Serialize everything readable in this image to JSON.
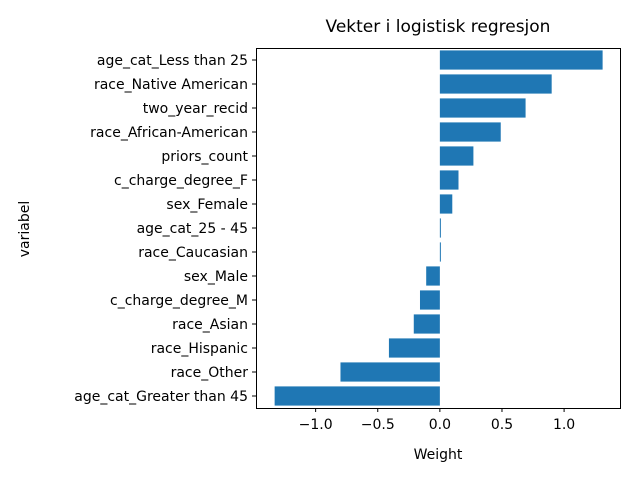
{
  "chart_data": {
    "type": "bar",
    "orientation": "horizontal",
    "title": "Vekter i logistisk regresjon",
    "xlabel": "Weight",
    "ylabel": "variabel",
    "categories": [
      "age_cat_Less than 25",
      "race_Native American",
      "two_year_recid",
      "race_African-American",
      "priors_count",
      "c_charge_degree_F",
      "sex_Female",
      "age_cat_25 - 45",
      "race_Caucasian",
      "sex_Male",
      "c_charge_degree_M",
      "race_Asian",
      "race_Hispanic",
      "race_Other",
      "age_cat_Greater than 45"
    ],
    "values": [
      1.31,
      0.9,
      0.69,
      0.49,
      0.27,
      0.15,
      0.1,
      0.005,
      0.005,
      -0.11,
      -0.16,
      -0.21,
      -0.41,
      -0.8,
      -1.33
    ],
    "xlim": [
      -1.48,
      1.45
    ],
    "xticks": [
      -1.0,
      -0.5,
      0.0,
      0.5,
      1.0
    ],
    "xtick_labels": [
      "−1.0",
      "−0.5",
      "0.0",
      "0.5",
      "1.0"
    ],
    "bar_color": "#1f77b4",
    "grid": false,
    "legend": "none"
  }
}
